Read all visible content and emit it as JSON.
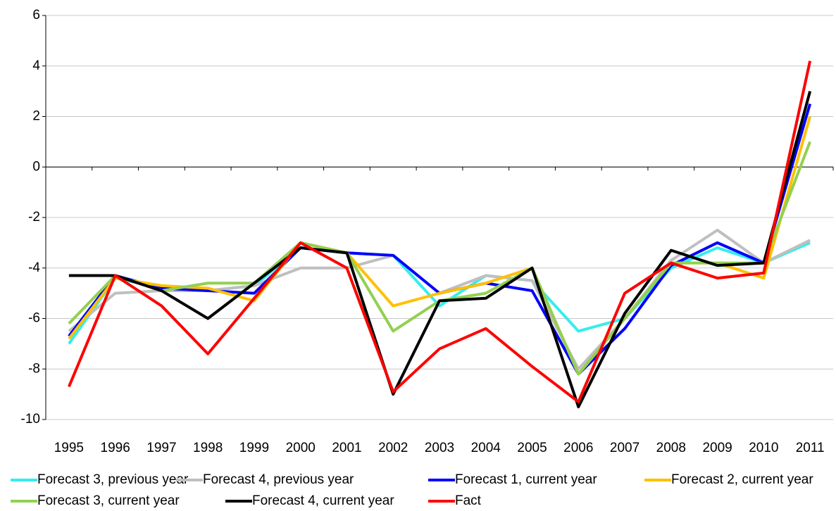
{
  "chart_data": {
    "type": "line",
    "categories": [
      "1995",
      "1996",
      "1997",
      "1998",
      "1999",
      "2000",
      "2001",
      "2002",
      "2003",
      "2004",
      "2005",
      "2006",
      "2007",
      "2008",
      "2009",
      "2010",
      "2011"
    ],
    "series": [
      {
        "name": "Forecast 3, previous year",
        "color": "#33eeee",
        "values": [
          -7.0,
          -4.4,
          -4.8,
          -4.9,
          -4.7,
          -3.2,
          -3.4,
          -3.5,
          -5.5,
          -4.3,
          -4.5,
          -6.5,
          -6.0,
          -4.0,
          -3.2,
          -3.8,
          -3.0
        ]
      },
      {
        "name": "Forecast 4, previous year",
        "color": "#bfbfbf",
        "values": [
          -6.5,
          -5.0,
          -4.9,
          -4.9,
          -4.7,
          -4.0,
          -4.0,
          -3.5,
          -5.0,
          -4.3,
          -4.5,
          -8.0,
          -6.0,
          -3.7,
          -2.5,
          -3.8,
          -2.9
        ]
      },
      {
        "name": "Forecast 1, current year",
        "color": "#0000ff",
        "values": [
          -6.7,
          -4.3,
          -4.8,
          -4.9,
          -5.0,
          -3.2,
          -3.4,
          -3.5,
          -5.0,
          -4.6,
          -4.9,
          -8.2,
          -6.4,
          -3.9,
          -3.0,
          -3.8,
          2.5
        ]
      },
      {
        "name": "Forecast 2, current year",
        "color": "#ffc000",
        "values": [
          -6.8,
          -4.4,
          -4.7,
          -4.8,
          -5.3,
          -3.0,
          -3.4,
          -5.5,
          -5.0,
          -4.6,
          -4.0,
          -8.2,
          -6.0,
          -3.8,
          -3.8,
          -4.4,
          2.0
        ]
      },
      {
        "name": "Forecast 3, current year",
        "color": "#92d050",
        "values": [
          -6.2,
          -4.3,
          -4.9,
          -4.6,
          -4.6,
          -3.0,
          -3.4,
          -6.5,
          -5.3,
          -5.0,
          -4.0,
          -8.2,
          -6.0,
          -3.8,
          -3.8,
          -3.8,
          1.0
        ]
      },
      {
        "name": "Forecast 4, current year",
        "color": "#000000",
        "values": [
          -4.3,
          -4.3,
          -4.9,
          -6.0,
          -4.6,
          -3.2,
          -3.4,
          -9.0,
          -5.3,
          -5.2,
          -4.0,
          -9.5,
          -5.8,
          -3.3,
          -3.9,
          -3.8,
          3.0
        ]
      },
      {
        "name": "Fact",
        "color": "#ff0000",
        "values": [
          -8.7,
          -4.3,
          -5.5,
          -7.4,
          -5.2,
          -3.0,
          -4.0,
          -8.9,
          -7.2,
          -6.4,
          -7.9,
          -9.3,
          -5.0,
          -3.8,
          -4.4,
          -4.2,
          4.2
        ]
      }
    ],
    "ylim": [
      -10,
      6
    ],
    "yticks": [
      -10,
      -8,
      -6,
      -4,
      -2,
      0,
      2,
      4,
      6
    ],
    "grid": true,
    "legend": "bottom"
  }
}
